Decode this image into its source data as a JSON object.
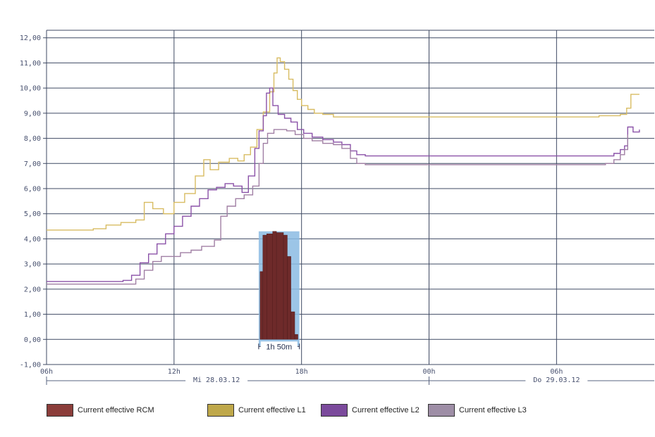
{
  "chart_data": {
    "type": "line",
    "y_tick_labels": [
      "-1,00",
      "0,00",
      "1,00",
      "2,00",
      "3,00",
      "4,00",
      "5,00",
      "6,00",
      "7,00",
      "8,00",
      "9,00",
      "10,00",
      "11,00",
      "12,00"
    ],
    "ylim": [
      -1,
      12.3
    ],
    "x_ticks": [
      {
        "label": "06h",
        "hour": 0
      },
      {
        "label": "12h",
        "hour": 6
      },
      {
        "label": "18h",
        "hour": 12
      },
      {
        "label": "00h",
        "hour": 18
      },
      {
        "label": "06h",
        "hour": 24
      }
    ],
    "xlim": [
      0,
      28.6
    ],
    "date_labels": [
      {
        "label": "Mi 28.03.12",
        "hour": 8
      },
      {
        "label": "Do 29.03.12",
        "hour": 24
      }
    ],
    "duration_label": "1h 50m",
    "series": [
      {
        "name": "Current effective L1",
        "color": "#d8bc62",
        "points": [
          [
            0,
            4.35
          ],
          [
            1.5,
            4.35
          ],
          [
            2.2,
            4.4
          ],
          [
            2.8,
            4.55
          ],
          [
            3.5,
            4.65
          ],
          [
            4.2,
            4.75
          ],
          [
            4.6,
            5.45
          ],
          [
            5.0,
            5.2
          ],
          [
            5.5,
            5.0
          ],
          [
            6.0,
            5.45
          ],
          [
            6.5,
            5.8
          ],
          [
            7.0,
            6.5
          ],
          [
            7.4,
            7.15
          ],
          [
            7.7,
            6.75
          ],
          [
            8.1,
            7.05
          ],
          [
            8.6,
            7.2
          ],
          [
            9.0,
            7.1
          ],
          [
            9.3,
            7.35
          ],
          [
            9.6,
            7.65
          ],
          [
            9.9,
            8.35
          ],
          [
            10.2,
            9.05
          ],
          [
            10.5,
            9.85
          ],
          [
            10.7,
            10.6
          ],
          [
            10.85,
            11.2
          ],
          [
            11.0,
            11.05
          ],
          [
            11.2,
            10.75
          ],
          [
            11.4,
            10.35
          ],
          [
            11.6,
            9.9
          ],
          [
            11.8,
            9.55
          ],
          [
            12.0,
            9.3
          ],
          [
            12.3,
            9.15
          ],
          [
            12.6,
            9.0
          ],
          [
            13.0,
            8.95
          ],
          [
            13.5,
            8.85
          ],
          [
            18,
            8.85
          ],
          [
            19.0,
            8.85
          ],
          [
            21,
            8.85
          ],
          [
            23,
            8.85
          ],
          [
            24.5,
            8.85
          ],
          [
            26.0,
            8.9
          ],
          [
            27.0,
            8.95
          ],
          [
            27.3,
            9.2
          ],
          [
            27.5,
            9.75
          ],
          [
            27.9,
            9.75
          ]
        ]
      },
      {
        "name": "Current effective L2",
        "color": "#8b52a8",
        "points": [
          [
            0,
            2.3
          ],
          [
            2.0,
            2.3
          ],
          [
            3.0,
            2.3
          ],
          [
            3.6,
            2.35
          ],
          [
            4.0,
            2.55
          ],
          [
            4.4,
            3.05
          ],
          [
            4.8,
            3.4
          ],
          [
            5.2,
            3.8
          ],
          [
            5.6,
            4.2
          ],
          [
            6.0,
            4.5
          ],
          [
            6.4,
            4.9
          ],
          [
            6.8,
            5.3
          ],
          [
            7.2,
            5.6
          ],
          [
            7.6,
            5.95
          ],
          [
            8.0,
            6.05
          ],
          [
            8.4,
            6.2
          ],
          [
            8.8,
            6.1
          ],
          [
            9.2,
            5.85
          ],
          [
            9.5,
            6.5
          ],
          [
            9.8,
            7.6
          ],
          [
            10.0,
            8.3
          ],
          [
            10.2,
            8.9
          ],
          [
            10.35,
            9.8
          ],
          [
            10.5,
            10.0
          ],
          [
            10.65,
            9.3
          ],
          [
            10.9,
            8.95
          ],
          [
            11.2,
            8.8
          ],
          [
            11.5,
            8.65
          ],
          [
            11.8,
            8.35
          ],
          [
            12.1,
            8.2
          ],
          [
            12.5,
            8.05
          ],
          [
            13.0,
            7.95
          ],
          [
            13.5,
            7.85
          ],
          [
            13.9,
            7.75
          ],
          [
            14.3,
            7.5
          ],
          [
            14.6,
            7.35
          ],
          [
            15.0,
            7.3
          ],
          [
            16,
            7.3
          ],
          [
            18,
            7.3
          ],
          [
            20,
            7.3
          ],
          [
            22,
            7.3
          ],
          [
            24,
            7.3
          ],
          [
            25,
            7.3
          ],
          [
            26.3,
            7.3
          ],
          [
            26.7,
            7.4
          ],
          [
            27.0,
            7.55
          ],
          [
            27.2,
            7.7
          ],
          [
            27.35,
            8.45
          ],
          [
            27.6,
            8.25
          ],
          [
            27.9,
            8.35
          ]
        ]
      },
      {
        "name": "Current effective L3",
        "color": "#a07fa4",
        "points": [
          [
            0,
            2.2
          ],
          [
            2.0,
            2.2
          ],
          [
            3.5,
            2.2
          ],
          [
            4.2,
            2.4
          ],
          [
            4.6,
            2.75
          ],
          [
            5.0,
            3.1
          ],
          [
            5.4,
            3.3
          ],
          [
            5.8,
            3.3
          ],
          [
            6.3,
            3.45
          ],
          [
            6.8,
            3.55
          ],
          [
            7.3,
            3.7
          ],
          [
            7.9,
            3.95
          ],
          [
            8.2,
            4.9
          ],
          [
            8.5,
            5.3
          ],
          [
            8.9,
            5.6
          ],
          [
            9.3,
            5.75
          ],
          [
            9.7,
            6.1
          ],
          [
            10.0,
            7.0
          ],
          [
            10.2,
            7.8
          ],
          [
            10.4,
            8.2
          ],
          [
            10.7,
            8.35
          ],
          [
            11.0,
            8.35
          ],
          [
            11.3,
            8.3
          ],
          [
            11.7,
            8.15
          ],
          [
            12.1,
            8.0
          ],
          [
            12.5,
            7.9
          ],
          [
            13.0,
            7.8
          ],
          [
            13.5,
            7.75
          ],
          [
            13.9,
            7.6
          ],
          [
            14.3,
            7.2
          ],
          [
            14.6,
            7.0
          ],
          [
            15.0,
            6.95
          ],
          [
            16,
            6.95
          ],
          [
            18,
            6.95
          ],
          [
            20,
            6.95
          ],
          [
            22,
            6.95
          ],
          [
            24,
            6.95
          ],
          [
            25.5,
            6.95
          ],
          [
            26.3,
            7.0
          ],
          [
            26.7,
            7.15
          ],
          [
            27.0,
            7.35
          ],
          [
            27.2,
            7.55
          ],
          [
            27.35,
            8.15
          ]
        ]
      }
    ],
    "rcm_bars": {
      "color": "#6e2a2a",
      "band_color": "#8bbbe3",
      "band_x": [
        10.05,
        11.9
      ],
      "band_y": [
        -0.25,
        4.3
      ],
      "bars": [
        {
          "x": 10.05,
          "w": 0.13,
          "v": 2.7
        },
        {
          "x": 10.18,
          "w": 0.18,
          "v": 4.15
        },
        {
          "x": 10.36,
          "w": 0.28,
          "v": 4.2
        },
        {
          "x": 10.64,
          "w": 0.18,
          "v": 4.3
        },
        {
          "x": 10.82,
          "w": 0.33,
          "v": 4.25
        },
        {
          "x": 11.15,
          "w": 0.18,
          "v": 4.15
        },
        {
          "x": 11.33,
          "w": 0.17,
          "v": 3.3
        },
        {
          "x": 11.5,
          "w": 0.18,
          "v": 1.1
        },
        {
          "x": 11.68,
          "w": 0.15,
          "v": 0.2
        }
      ]
    }
  },
  "legend": [
    {
      "label": "Current effective RCM",
      "color": "#8b3d3a"
    },
    {
      "label": "Current effective L1",
      "color": "#bfa84a"
    },
    {
      "label": "Current effective L2",
      "color": "#7b4a9c"
    },
    {
      "label": "Current effective L3",
      "color": "#9e8ea6"
    }
  ]
}
